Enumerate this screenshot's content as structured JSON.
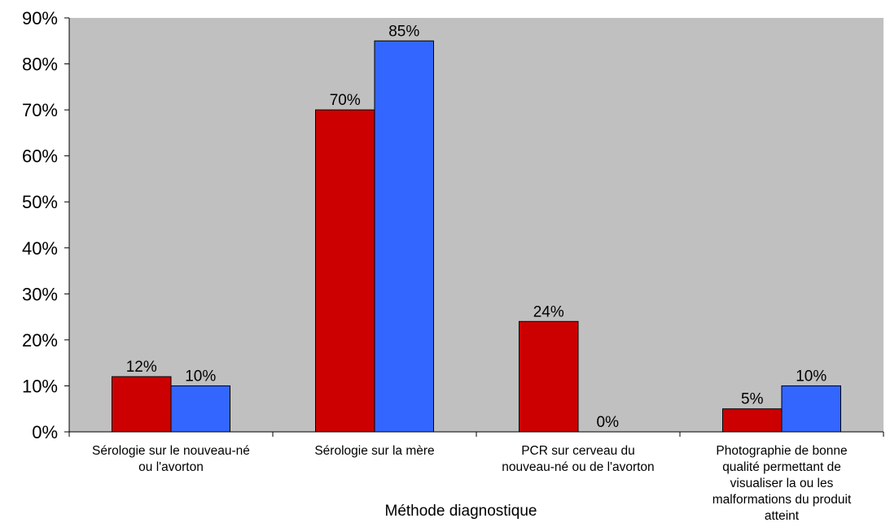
{
  "chart_data": {
    "type": "bar",
    "categories": [
      [
        "Sérologie sur le nouveau-né",
        "ou l'avorton"
      ],
      [
        "Sérologie sur la mère"
      ],
      [
        "PCR sur cerveau du",
        "nouveau-né ou de l'avorton"
      ],
      [
        "Photographie de bonne",
        "qualité permettant de",
        "visualiser la ou les",
        "malformations du produit",
        "atteint"
      ]
    ],
    "series": [
      {
        "color": "#cc0000",
        "values": [
          12,
          70,
          24,
          5
        ],
        "labels": [
          "12%",
          "70%",
          "24%",
          "5%"
        ]
      },
      {
        "color": "#3366ff",
        "values": [
          10,
          85,
          0,
          10
        ],
        "labels": [
          "10%",
          "85%",
          "0%",
          "10%"
        ]
      }
    ],
    "yticks": [
      "0%",
      "10%",
      "20%",
      "30%",
      "40%",
      "50%",
      "60%",
      "70%",
      "80%",
      "90%"
    ],
    "ylim": [
      0,
      90
    ],
    "xlabel": "Méthode diagnostique",
    "ylabel": "",
    "plot_background": "#c0c0c0",
    "grid": false,
    "legend": "none"
  }
}
